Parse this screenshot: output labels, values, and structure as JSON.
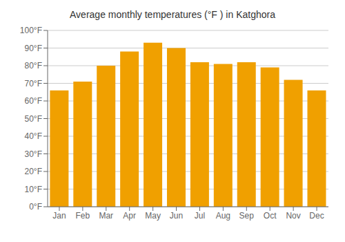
{
  "chart_data": {
    "type": "bar",
    "title": "Average monthly temperatures (°F ) in Katghora",
    "categories": [
      "Jan",
      "Feb",
      "Mar",
      "Apr",
      "May",
      "Jun",
      "Jul",
      "Aug",
      "Sep",
      "Oct",
      "Nov",
      "Dec"
    ],
    "values": [
      66,
      71,
      80,
      88,
      93,
      90,
      82,
      81,
      82,
      79,
      72,
      66
    ],
    "color": "#F0A000",
    "ylim": [
      0,
      100
    ],
    "yticks": [
      {
        "value": 0,
        "label": "0°F"
      },
      {
        "value": 10,
        "label": "10°F"
      },
      {
        "value": 20,
        "label": "20°F"
      },
      {
        "value": 30,
        "label": "30°F"
      },
      {
        "value": 40,
        "label": "40°F"
      },
      {
        "value": 50,
        "label": "50°F"
      },
      {
        "value": 60,
        "label": "60°F"
      },
      {
        "value": 70,
        "label": "70°F"
      },
      {
        "value": 80,
        "label": "80°F"
      },
      {
        "value": 90,
        "label": "90°F"
      },
      {
        "value": 100,
        "label": "100°F"
      }
    ],
    "grid": true
  }
}
